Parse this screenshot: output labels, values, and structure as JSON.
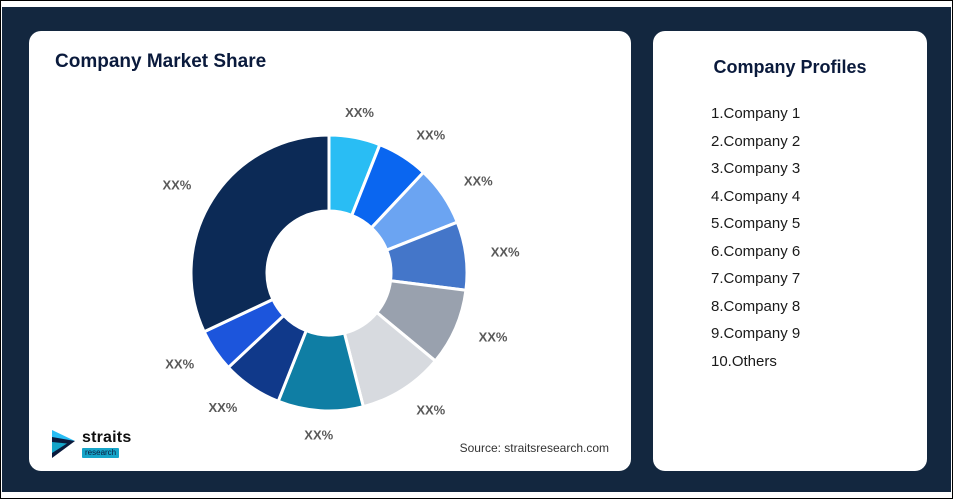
{
  "page": {
    "background_color": "#13273F",
    "card_color": "#FFFFFF"
  },
  "left_card": {
    "title": "Company Market Share",
    "source": "Source: straitsresearch.com",
    "logo": {
      "name": "straits",
      "sub": "research",
      "icon_color_primary": "#29BDF4",
      "icon_color_secondary": "#0A1A3C"
    }
  },
  "right_card": {
    "title": "Company Profiles",
    "items": [
      "1.Company 1",
      "2.Company 2",
      "3.Company 3",
      "4.Company 4",
      "5.Company 5",
      "6.Company 6",
      "7.Company 7",
      "8.Company 8",
      "9.Company 9",
      "10.Others"
    ]
  },
  "chart_data": {
    "type": "pie",
    "subtype": "donut",
    "title": "Company Market Share",
    "start_angle_deg": 0,
    "direction": "clockwise",
    "inner_radius_ratio": 0.45,
    "legend": "none",
    "slices": [
      {
        "label": "XX%",
        "value_estimated_pct": 6,
        "color": "#29BDF4"
      },
      {
        "label": "XX%",
        "value_estimated_pct": 6,
        "color": "#0A66F0"
      },
      {
        "label": "XX%",
        "value_estimated_pct": 7,
        "color": "#6BA4F2"
      },
      {
        "label": "XX%",
        "value_estimated_pct": 8,
        "color": "#4476C9"
      },
      {
        "label": "XX%",
        "value_estimated_pct": 9,
        "color": "#99A1AE"
      },
      {
        "label": "XX%",
        "value_estimated_pct": 10,
        "color": "#D7DADF"
      },
      {
        "label": "XX%",
        "value_estimated_pct": 10,
        "color": "#0F7EA4"
      },
      {
        "label": "XX%",
        "value_estimated_pct": 7,
        "color": "#10398A"
      },
      {
        "label": "XX%",
        "value_estimated_pct": 5,
        "color": "#1C55DC"
      },
      {
        "label": "XX%",
        "value_estimated_pct": 32,
        "color": "#0C2A56"
      }
    ],
    "label_color": "#595959",
    "separator_color": "#FFFFFF"
  }
}
